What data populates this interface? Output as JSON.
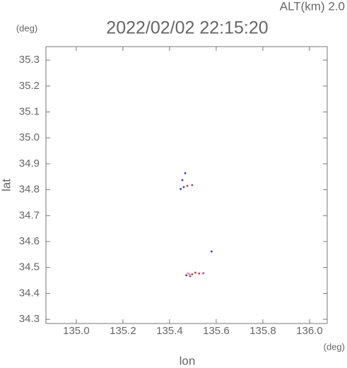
{
  "chart_data": {
    "type": "scatter",
    "title": "2022/02/02 22:15:20",
    "annotation": "ALT(km) 2.0",
    "y_unit": "(deg)",
    "x_unit": "(deg)",
    "xlabel": "lon",
    "ylabel": "lat",
    "xlim": [
      134.87,
      136.076
    ],
    "ylim": [
      34.284,
      35.352
    ],
    "xticks": [
      {
        "value": 135.0,
        "label": "135.0"
      },
      135.2,
      135.4,
      135.6,
      135.8,
      {
        "value": 136.0,
        "label": "136.0"
      }
    ],
    "yticks": [
      34.3,
      34.4,
      34.5,
      34.6,
      34.7,
      34.8,
      34.9,
      {
        "value": 35.0,
        "label": "35.0"
      },
      35.1,
      35.2,
      35.3
    ],
    "series": [
      {
        "color": "#3030d0",
        "x": [
          135.467,
          135.455,
          135.461,
          135.448,
          135.488,
          135.58,
          135.545,
          135.472
        ],
        "values": [
          34.864,
          34.837,
          34.81,
          34.803,
          34.467,
          34.562,
          34.478,
          34.47
        ]
      },
      {
        "color": "#e03030",
        "x": [
          135.476,
          135.497,
          135.497,
          135.527,
          135.511
        ],
        "values": [
          34.815,
          34.818,
          34.474,
          34.477,
          34.48
        ]
      },
      {
        "color": "#f08aa0",
        "x": [
          135.485,
          135.542,
          135.478,
          135.488
        ],
        "values": [
          34.474,
          34.477,
          34.478,
          34.47
        ]
      }
    ]
  }
}
